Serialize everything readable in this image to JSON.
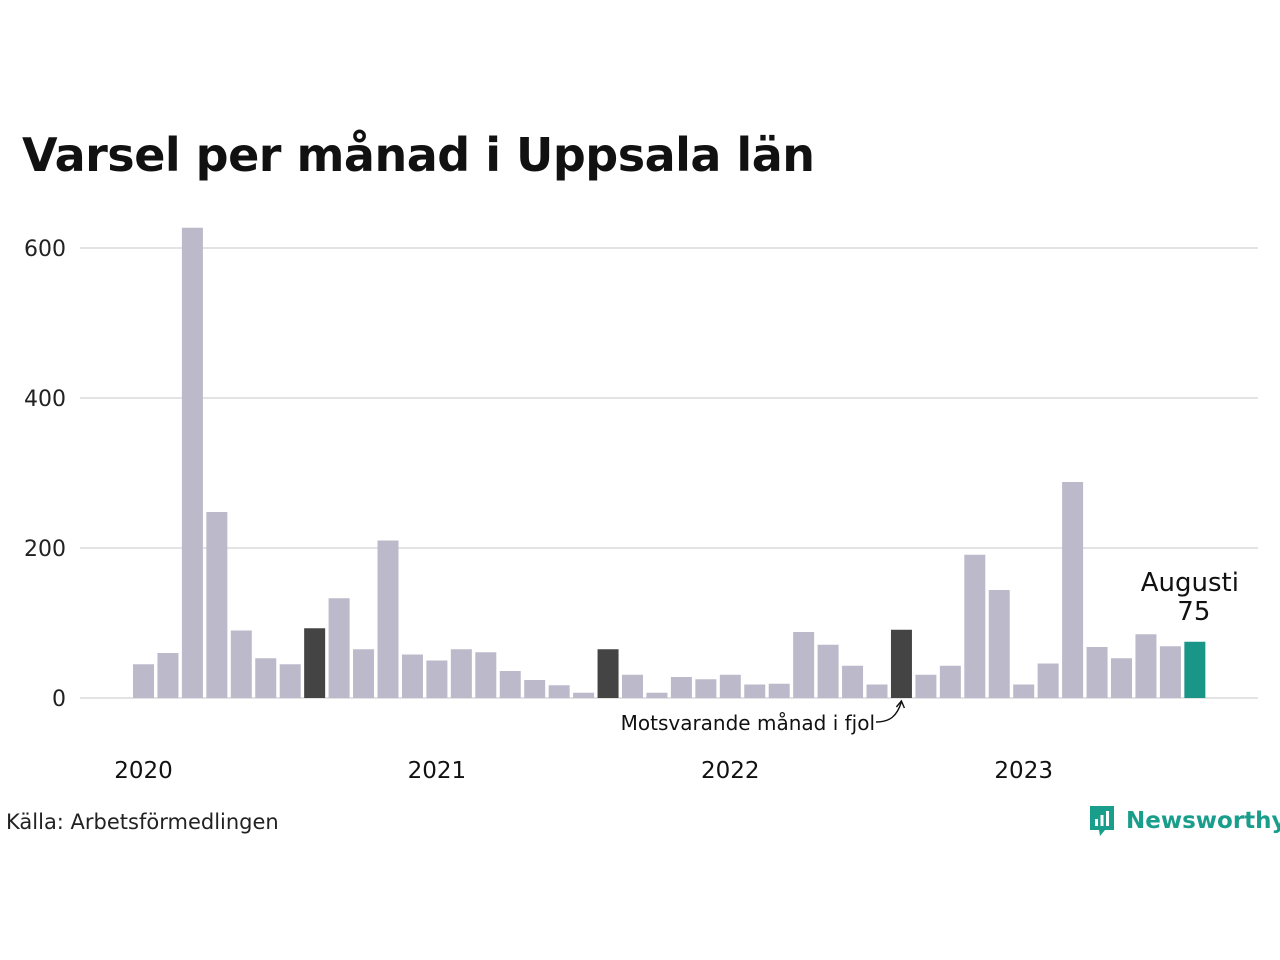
{
  "chart_data": {
    "type": "bar",
    "title": "Varsel per månad i Uppsala län",
    "source": "Källa: Arbetsförmedlingen",
    "brand": "Newsworthy",
    "ylim": [
      0,
      640
    ],
    "yticks": [
      0,
      200,
      400,
      600
    ],
    "year_labels": [
      {
        "label": "2020",
        "index": 0
      },
      {
        "label": "2021",
        "index": 12
      },
      {
        "label": "2022",
        "index": 24
      },
      {
        "label": "2023",
        "index": 36
      }
    ],
    "values": [
      45,
      60,
      627,
      248,
      90,
      53,
      45,
      93,
      133,
      65,
      210,
      58,
      50,
      65,
      61,
      36,
      24,
      17,
      7,
      65,
      31,
      7,
      28,
      25,
      31,
      18,
      19,
      88,
      71,
      43,
      18,
      91,
      31,
      43,
      191,
      144,
      18,
      46,
      288,
      68,
      53,
      85,
      69,
      75
    ],
    "highlight_same_month": [
      7,
      19,
      31
    ],
    "current_index": 43,
    "current_label": "Augusti",
    "current_value_label": "75",
    "annotation": "Motsvarande månad i fjol",
    "colors": {
      "bar": "#bcbaca",
      "same_month": "#444444",
      "current": "#1a9688",
      "grid": "#e3e3e3",
      "brand": "#1a9e8c"
    },
    "grid": true
  }
}
